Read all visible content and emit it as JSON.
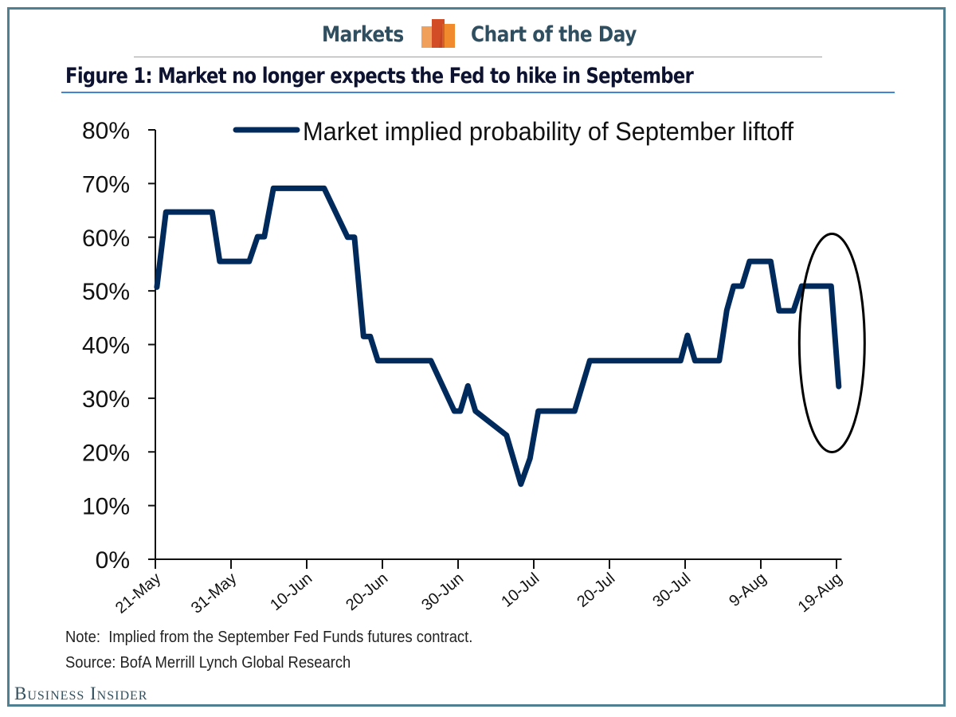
{
  "header": {
    "left_label": "Markets",
    "right_label": "Chart of the Day",
    "logo_icon": "bar-chart-logo-icon",
    "accent_color": "#e9836a",
    "text_color": "#2f4f60"
  },
  "figure": {
    "title": "Figure 1: Market no longer expects the Fed to hike in September",
    "note": "Note:  Implied from the September Fed Funds futures contract.",
    "source": "Source: BofA Merrill Lynch Global Research"
  },
  "branding": {
    "publisher": "Business Insider"
  },
  "chart_data": {
    "type": "line",
    "title": "Figure 1: Market no longer expects the Fed to hike in September",
    "xlabel": "",
    "ylabel": "",
    "ylim": [
      0,
      80
    ],
    "y_ticks": [
      "0%",
      "10%",
      "20%",
      "30%",
      "40%",
      "50%",
      "60%",
      "70%",
      "80%"
    ],
    "y_tick_values": [
      0,
      10,
      20,
      30,
      40,
      50,
      60,
      70,
      80
    ],
    "x_ticks": [
      "21-May",
      "31-May",
      "10-Jun",
      "20-Jun",
      "30-Jun",
      "10-Jul",
      "20-Jul",
      "30-Jul",
      "9-Aug",
      "19-Aug"
    ],
    "x_tick_days": [
      0,
      10,
      20,
      30,
      40,
      50,
      60,
      70,
      80,
      90
    ],
    "x_unit": "days since 21-May",
    "xlim": [
      0,
      91
    ],
    "grid": false,
    "legend": {
      "position": "top-center",
      "entries": [
        "Market implied probability of September liftoff"
      ]
    },
    "series": [
      {
        "name": "Market implied probability of September liftoff",
        "color": "#002a5c",
        "x": [
          0.2,
          1.4,
          7.5,
          8.5,
          12.4,
          13.5,
          14.4,
          15.6,
          22.3,
          25.4,
          26.3,
          27.5,
          28.4,
          29.4,
          36.4,
          39.5,
          40.3,
          41.3,
          42.3,
          46.4,
          48.3,
          49.5,
          50.6,
          55.4,
          57.4,
          69.4,
          70.3,
          71.3,
          74.5,
          75.5,
          76.4,
          77.5,
          78.5,
          81.3,
          82.4,
          84.3,
          85.4,
          89.3,
          90.3
        ],
        "y": [
          50.7,
          64.7,
          64.7,
          55.5,
          55.5,
          60.1,
          60.1,
          69.1,
          69.1,
          60,
          60,
          41.5,
          41.5,
          37,
          37,
          27.6,
          27.6,
          32.3,
          27.6,
          23.1,
          14,
          18.8,
          27.6,
          27.6,
          37,
          37,
          41.7,
          37,
          37,
          46.4,
          50.9,
          50.9,
          55.5,
          55.5,
          46.3,
          46.3,
          50.9,
          50.9,
          32.2
        ]
      }
    ],
    "annotations": [
      {
        "type": "ellipse",
        "around": "final drop to 32% (~19-Aug)",
        "color": "#000000"
      }
    ]
  }
}
